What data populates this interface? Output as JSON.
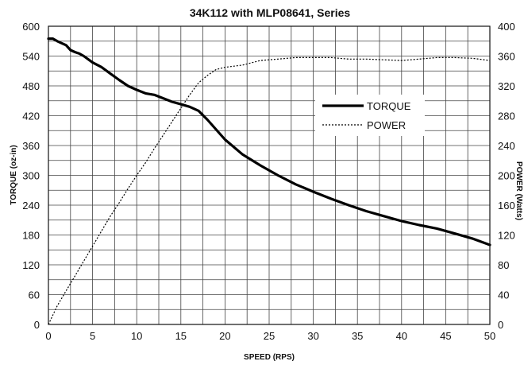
{
  "chart_data": {
    "type": "line",
    "title": "34K112 with MLP08641, Series",
    "xlabel": "SPEED (RPS)",
    "ylabel": "TORQUE (oz-in)",
    "y2label": "POWER (Watts)",
    "xlim": [
      0,
      50
    ],
    "ylim": [
      0,
      600
    ],
    "y2lim": [
      0,
      400
    ],
    "x_ticks": [
      0,
      5,
      10,
      15,
      20,
      25,
      30,
      35,
      40,
      45,
      50
    ],
    "y_ticks": [
      0,
      60,
      120,
      180,
      240,
      300,
      360,
      420,
      480,
      540,
      600
    ],
    "y2_ticks": [
      0,
      40,
      80,
      120,
      160,
      200,
      240,
      280,
      320,
      360,
      400
    ],
    "grid": true,
    "legend_position": "center-right",
    "series": [
      {
        "name": "TORQUE",
        "axis": "left",
        "style": "solid",
        "color": "#000000",
        "x": [
          0,
          0.5,
          1,
          2,
          2.5,
          3,
          3.5,
          4,
          5,
          6,
          7,
          8,
          9,
          10,
          11,
          12,
          13,
          14,
          15,
          16,
          17,
          18,
          19,
          20,
          22,
          24,
          26,
          28,
          30,
          32,
          34,
          36,
          38,
          40,
          42,
          44,
          46,
          48,
          50
        ],
        "values": [
          575,
          575,
          570,
          562,
          552,
          548,
          545,
          540,
          527,
          518,
          505,
          492,
          480,
          472,
          465,
          462,
          455,
          448,
          443,
          438,
          430,
          412,
          392,
          372,
          342,
          320,
          300,
          282,
          267,
          253,
          240,
          228,
          218,
          208,
          200,
          193,
          183,
          173,
          160
        ]
      },
      {
        "name": "POWER",
        "axis": "right",
        "style": "dotted",
        "color": "#000000",
        "x": [
          0,
          1,
          2,
          3,
          4,
          5,
          6,
          7,
          8,
          9,
          10,
          11,
          12,
          13,
          14,
          15,
          16,
          17,
          18,
          19,
          20,
          22,
          24,
          26,
          28,
          30,
          32,
          34,
          36,
          38,
          40,
          42,
          44,
          46,
          48,
          50
        ],
        "values": [
          0,
          25,
          45,
          65,
          85,
          105,
          125,
          145,
          163,
          182,
          200,
          217,
          236,
          254,
          272,
          290,
          308,
          324,
          334,
          342,
          345,
          348,
          354,
          356,
          358,
          358,
          358,
          356,
          356,
          355,
          354,
          356,
          358,
          358,
          357,
          354
        ]
      }
    ]
  }
}
